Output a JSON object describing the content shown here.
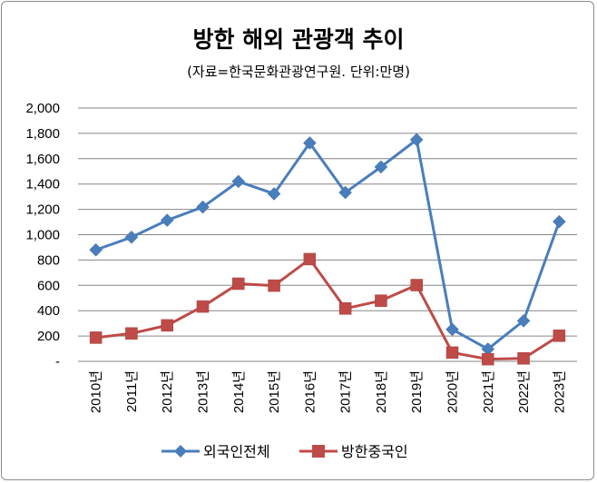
{
  "chart_data": {
    "type": "line",
    "title": "방한 해외 관광객 추이",
    "subtitle": "(자료=한국문화관광연구원. 단위:만명)",
    "categories": [
      "2010년",
      "2011년",
      "2012년",
      "2013년",
      "2014년",
      "2015년",
      "2016년",
      "2017년",
      "2018년",
      "2019년",
      "2020년",
      "2021년",
      "2022년",
      "2023년"
    ],
    "ylim": [
      0,
      2000
    ],
    "yticks": [
      0,
      200,
      400,
      600,
      800,
      1000,
      1200,
      1400,
      1600,
      1800,
      2000
    ],
    "ytick_labels": [
      "-",
      "200",
      "400",
      "600",
      "800",
      "1,000",
      "1,200",
      "1,400",
      "1,600",
      "1,800",
      "2,000"
    ],
    "grid": true,
    "legend": "bottom",
    "series": [
      {
        "name": "외국인전체",
        "color": "#4a7ebb",
        "marker": "diamond",
        "values": [
          880,
          980,
          1114,
          1218,
          1420,
          1323,
          1724,
          1333,
          1535,
          1750,
          252,
          97,
          320,
          1103
        ]
      },
      {
        "name": "방한중국인",
        "color": "#be4b48",
        "marker": "square",
        "values": [
          187,
          220,
          284,
          433,
          613,
          598,
          807,
          417,
          479,
          602,
          69,
          17,
          23,
          202
        ]
      }
    ]
  }
}
